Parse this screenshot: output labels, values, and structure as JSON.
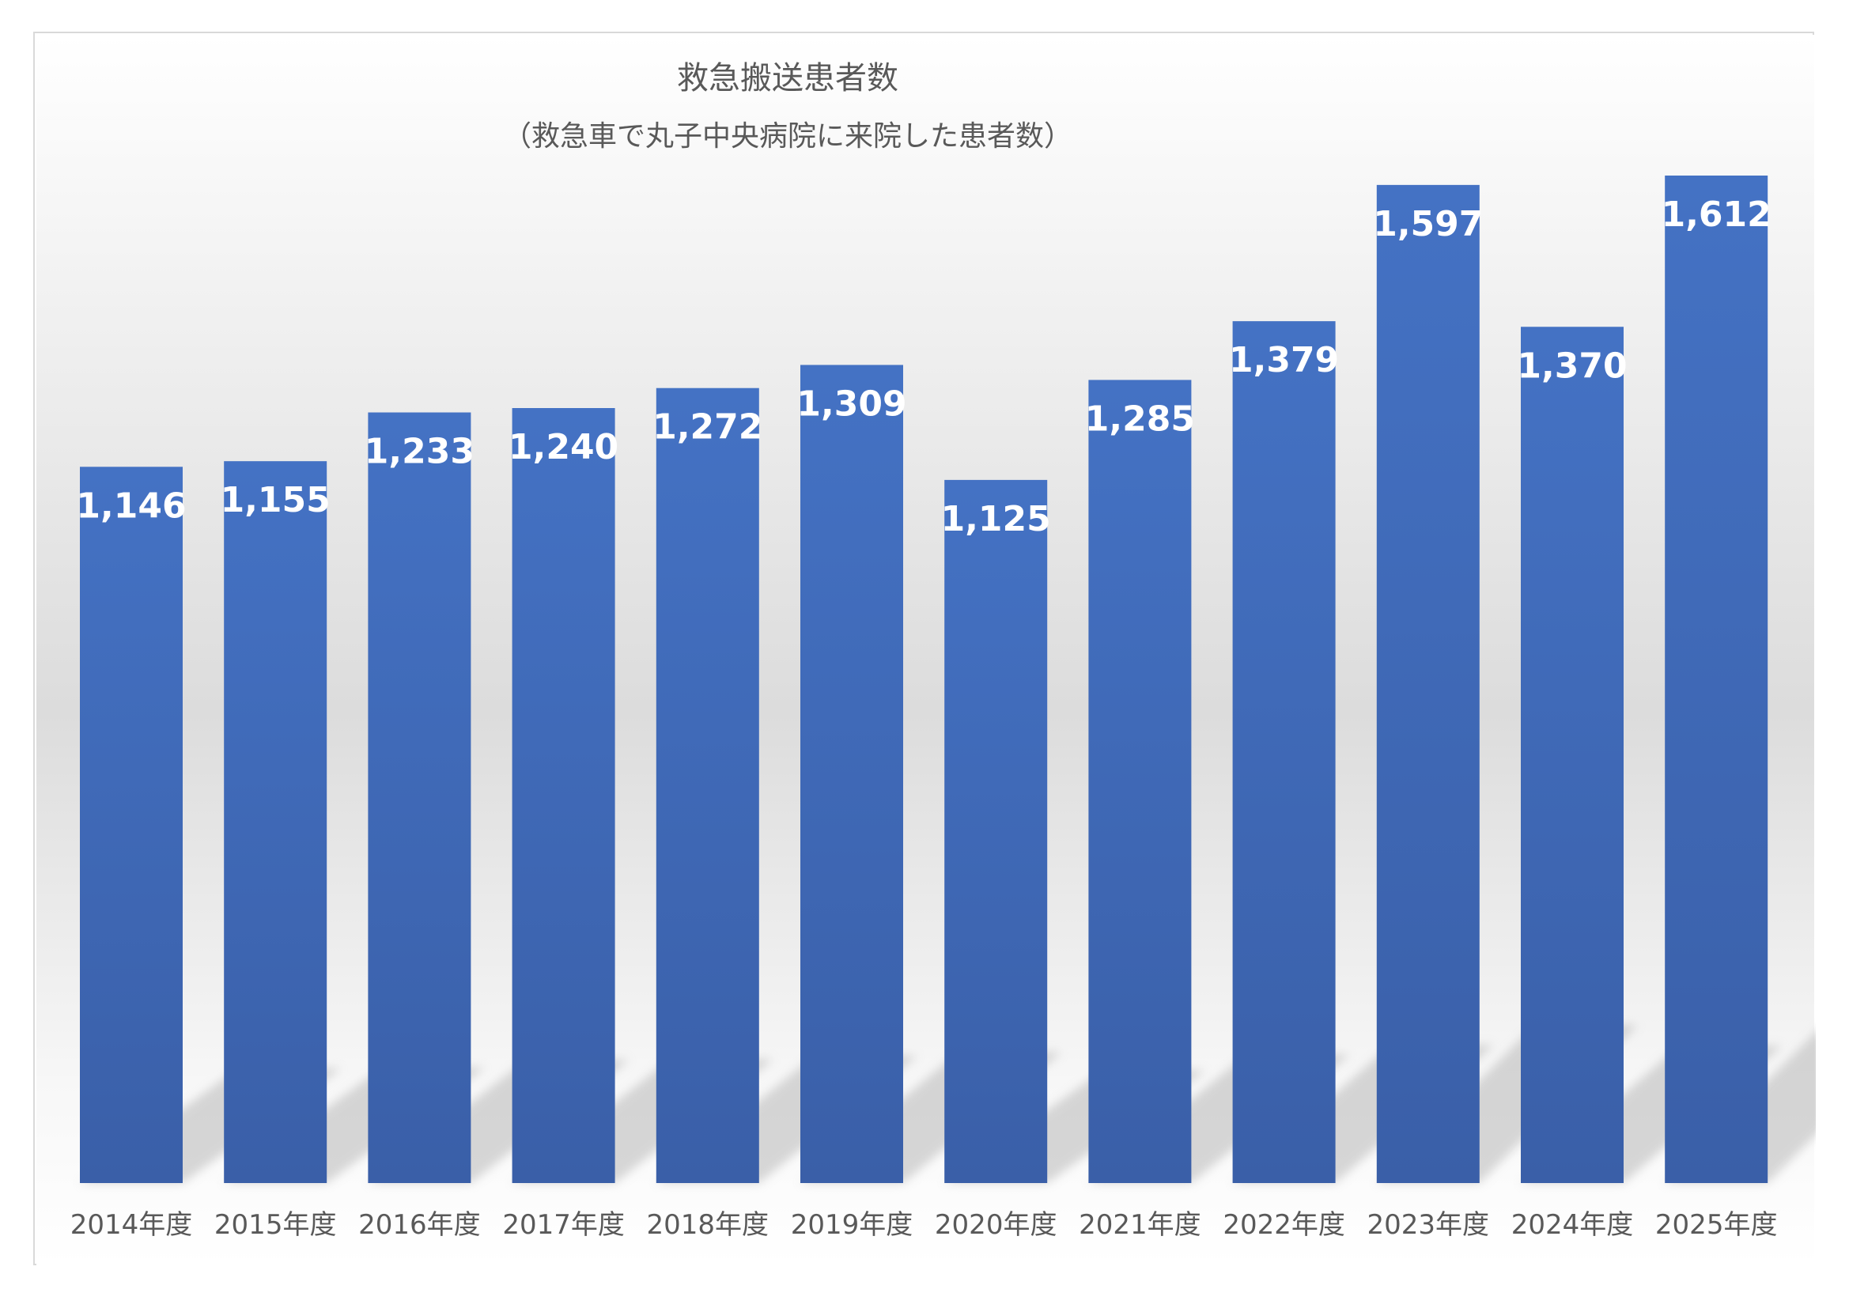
{
  "chart_data": {
    "type": "bar",
    "title": "救急搬送患者数",
    "subtitle": "（救急車で丸子中央病院に来院した患者数）",
    "categories": [
      "2014年度",
      "2015年度",
      "2016年度",
      "2017年度",
      "2018年度",
      "2019年度",
      "2020年度",
      "2021年度",
      "2022年度",
      "2023年度",
      "2024年度",
      "2025年度"
    ],
    "values": [
      1146,
      1155,
      1233,
      1240,
      1272,
      1309,
      1125,
      1285,
      1379,
      1597,
      1370,
      1612
    ],
    "data_labels": [
      "1,146",
      "1,155",
      "1,233",
      "1,240",
      "1,272",
      "1,309",
      "1,125",
      "1,285",
      "1,379",
      "1,597",
      "1,370",
      "1,612"
    ],
    "xlabel": "",
    "ylabel": "",
    "ylim": [
      0,
      1612
    ],
    "grid": false,
    "legend": "none",
    "bar_color_top": "#4472C4",
    "bar_color_bottom": "#3A5FA8"
  }
}
